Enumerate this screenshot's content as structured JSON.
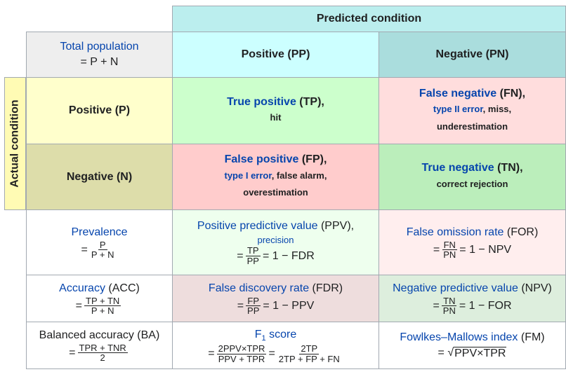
{
  "header": {
    "predicted_condition": "Predicted condition",
    "actual_condition": "Actual condition",
    "total_population": "Total population",
    "total_formula": "= P + N",
    "pred_positive": "Positive (PP)",
    "pred_negative": "Negative (PN)",
    "actual_positive": "Positive (P)",
    "actual_negative": "Negative (N)"
  },
  "cells": {
    "tp": {
      "name": "True positive",
      "abbr": " (TP),",
      "sub": "hit"
    },
    "fn": {
      "name": "False negative",
      "abbr": " (FN),",
      "sub_link": "type II error",
      "sub_rest": ", miss,",
      "sub2": "underestimation"
    },
    "fp": {
      "name": "False positive",
      "abbr": " (FP),",
      "sub_link": "type I error",
      "sub_rest": ", false alarm,",
      "sub2": "overestimation"
    },
    "tn": {
      "name": "True negative",
      "abbr": " (TN),",
      "sub": "correct rejection"
    }
  },
  "metrics": {
    "prevalence": {
      "name": "Prevalence",
      "num": "P",
      "den": "P + N"
    },
    "ppv": {
      "name": "Positive predictive value",
      "abbr": " (PPV),",
      "alt": "precision",
      "num": "TP",
      "den": "PP",
      "rest": "= 1 − FDR"
    },
    "for": {
      "name": "False omission rate",
      "abbr": " (FOR)",
      "num": "FN",
      "den": "PN",
      "rest": "= 1 − NPV"
    },
    "acc": {
      "name": "Accuracy",
      "abbr": " (ACC)",
      "num": "TP + TN",
      "den": "P + N"
    },
    "fdr": {
      "name": "False discovery rate",
      "abbr": " (FDR)",
      "num": "FP",
      "den": "PP",
      "rest": "= 1 − PPV"
    },
    "npv": {
      "name": "Negative predictive value",
      "abbr": " (NPV)",
      "num": "TN",
      "den": "PN",
      "rest": "= 1 − FOR"
    },
    "ba": {
      "name": "Balanced accuracy",
      "abbr": " (BA)",
      "num": "TPR + TNR",
      "den": "2"
    },
    "f1": {
      "name_main": "F",
      "name_sub": "1",
      "name_rest": " score",
      "num1": "2PPV×TPR",
      "den1": "PPV + TPR",
      "num2": "2TP",
      "den2": "2TP + FP + FN"
    },
    "fm": {
      "name": "Fowlkes–Mallows index",
      "abbr": " (FM)",
      "radicand": "PPV×TPR"
    }
  },
  "colors": {
    "header_bg": "#bbeeee",
    "pred_pos_bg": "#ccffff",
    "pred_neg_bg": "#aadddd",
    "total_bg": "#eeeeee",
    "actual_pos_bg": "#ffffcc",
    "actual_neg_bg": "#ddddaa",
    "tp_bg": "#ccffcc",
    "fn_bg": "#ffdddd",
    "fp_bg": "#ffcccc",
    "tn_bg": "#bbeebb",
    "ppv_bg": "#eeffee",
    "for_bg": "#ffeeee",
    "fdr_bg": "#eedddd",
    "npv_bg": "#ddeedd",
    "link": "#0645ad"
  }
}
